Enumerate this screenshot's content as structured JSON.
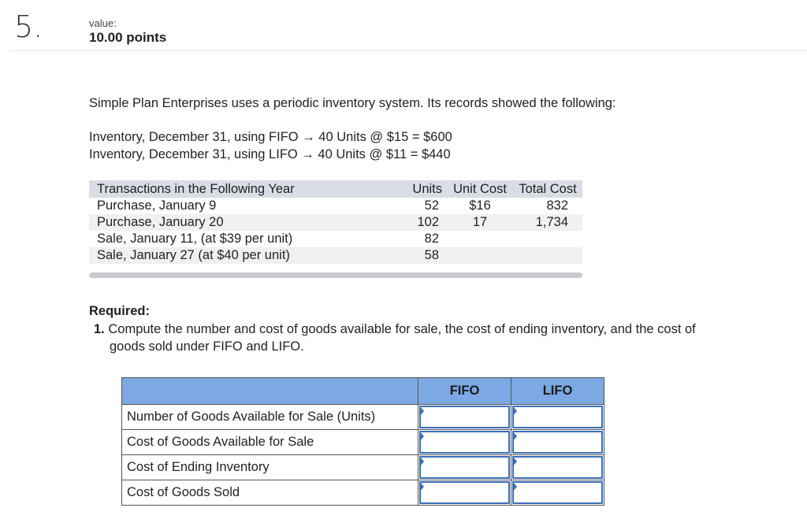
{
  "question": {
    "number": "5.",
    "value_label": "value:",
    "value_points": "10.00 points"
  },
  "statement": "Simple Plan Enterprises uses a periodic inventory system. Its records showed the following:",
  "inventory_lines": [
    "Inventory, December 31, using FIFO → 40 Units @ $15 = $600",
    "Inventory, December 31, using LIFO → 40 Units @ $11 = $440"
  ],
  "transactions": {
    "headers": [
      "Transactions in the Following Year",
      "Units",
      "Unit Cost",
      "Total Cost"
    ],
    "rows": [
      {
        "label": "Purchase, January 9",
        "units": "52",
        "unit_cost": "$16",
        "total_cost": "832"
      },
      {
        "label": "Purchase, January 20",
        "units": "102",
        "unit_cost": "17",
        "total_cost": "1,734"
      },
      {
        "label": "Sale, January 11, (at $39 per unit)",
        "units": "82",
        "unit_cost": "",
        "total_cost": ""
      },
      {
        "label": "Sale, January 27 (at $40 per unit)",
        "units": "58",
        "unit_cost": "",
        "total_cost": ""
      }
    ]
  },
  "required": {
    "heading": "Required:",
    "item_number": "1.",
    "item_line1": "Compute the number and cost of goods available for sale, the cost of ending inventory, and the cost of",
    "item_line2": "goods sold under FIFO and LIFO."
  },
  "answer_table": {
    "columns": [
      "FIFO",
      "LIFO"
    ],
    "rows": [
      {
        "label": "Number of Goods Available for Sale (Units)",
        "fifo": "",
        "lifo": ""
      },
      {
        "label": "Cost of Goods Available for Sale",
        "fifo": "",
        "lifo": ""
      },
      {
        "label": "Cost of Ending Inventory",
        "fifo": "",
        "lifo": ""
      },
      {
        "label": "Cost of Goods Sold",
        "fifo": "",
        "lifo": ""
      }
    ]
  },
  "colors": {
    "answer_header": "#7ca8e3",
    "input_border": "#3a6db5",
    "tx_header": "#d9dde5"
  }
}
